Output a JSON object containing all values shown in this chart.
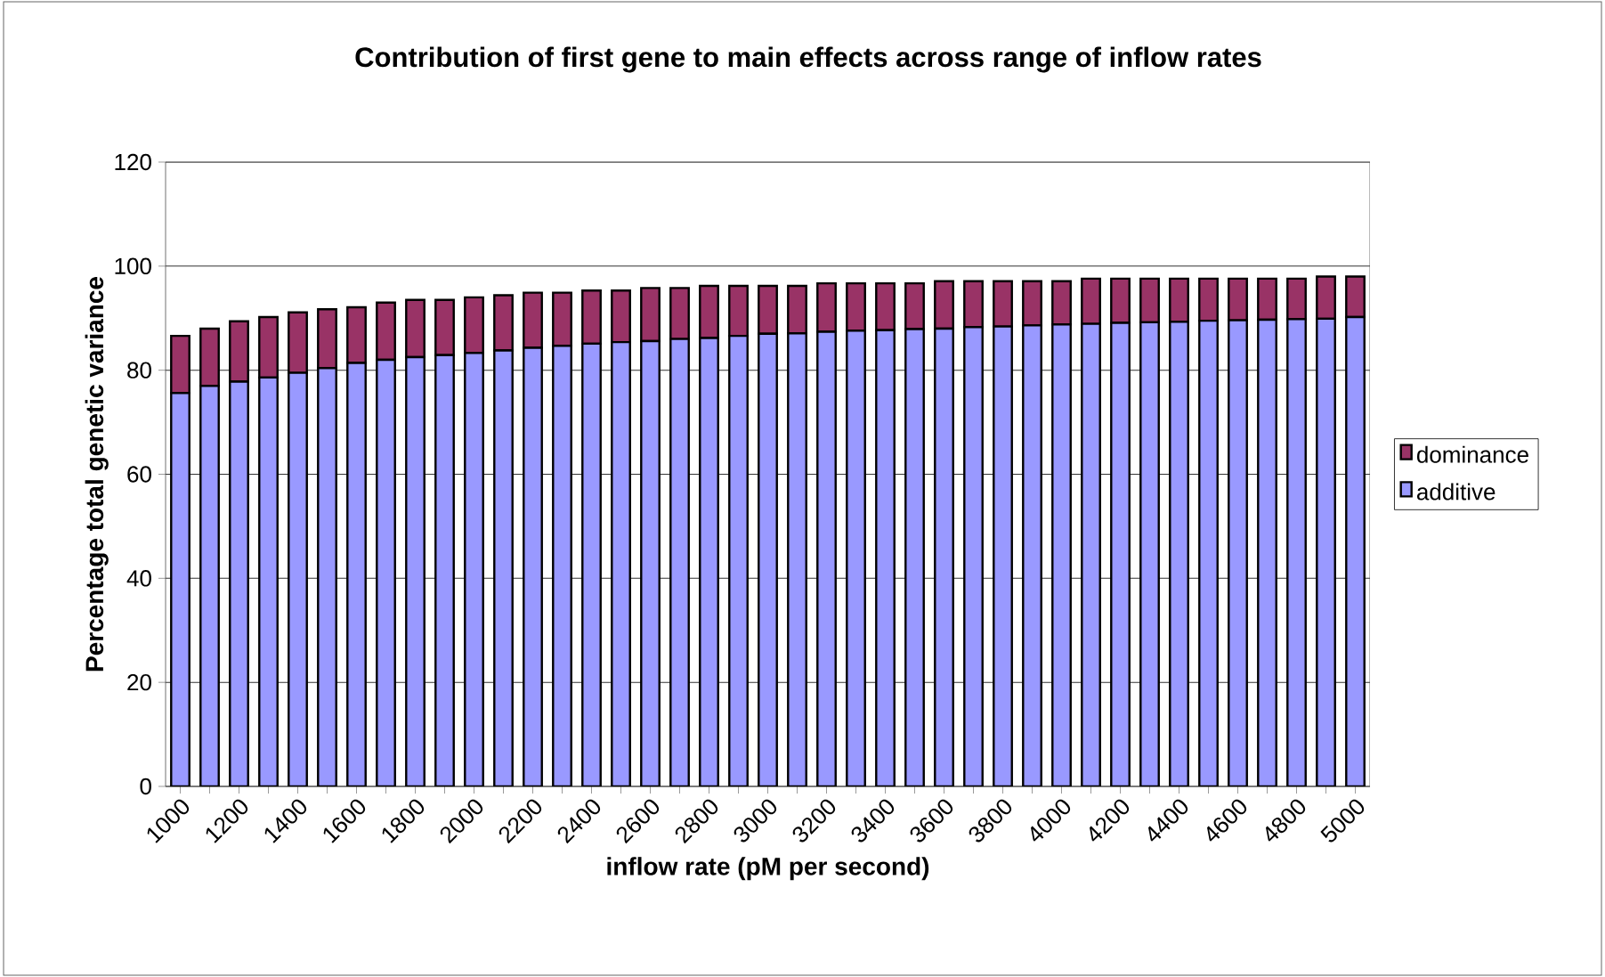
{
  "chart_data": {
    "type": "bar",
    "stacked": true,
    "title": "Contribution of first gene to main effects across range of inflow rates",
    "xlabel": "inflow rate (pM per second)",
    "ylabel": "Percentage total genetic variance",
    "categories": [
      "1000",
      null,
      "1200",
      null,
      "1400",
      null,
      "1600",
      null,
      "1800",
      null,
      "2000",
      null,
      "2200",
      null,
      "2400",
      null,
      "2600",
      null,
      "2800",
      null,
      "3000",
      null,
      "3200",
      null,
      "3400",
      null,
      "3600",
      null,
      "3800",
      null,
      "4000",
      null,
      "4200",
      null,
      "4400",
      null,
      "4600",
      null,
      "4800",
      null,
      "5000"
    ],
    "series": [
      {
        "name": "additive",
        "color": "#9999ff",
        "values": [
          75.6,
          77.0,
          77.8,
          78.6,
          79.5,
          80.4,
          81.4,
          82.0,
          82.5,
          82.9,
          83.3,
          83.8,
          84.3,
          84.7,
          85.1,
          85.4,
          85.6,
          86.0,
          86.2,
          86.6,
          87.0,
          87.1,
          87.4,
          87.6,
          87.7,
          87.9,
          88.0,
          88.3,
          88.4,
          88.6,
          88.8,
          88.9,
          89.1,
          89.2,
          89.3,
          89.5,
          89.6,
          89.7,
          89.8,
          89.9,
          90.2
        ]
      },
      {
        "name": "dominance",
        "color": "#993366",
        "values": [
          11.0,
          11.0,
          11.6,
          11.6,
          11.6,
          11.3,
          10.7,
          11.0,
          11.0,
          10.6,
          10.7,
          10.6,
          10.6,
          10.2,
          10.2,
          9.9,
          10.2,
          9.8,
          10.0,
          9.6,
          9.2,
          9.1,
          9.3,
          9.1,
          9.0,
          8.8,
          9.1,
          8.8,
          8.7,
          8.5,
          8.3,
          8.7,
          8.5,
          8.4,
          8.3,
          8.1,
          8.0,
          7.9,
          7.8,
          8.1,
          7.8
        ]
      }
    ],
    "ylim": [
      0,
      120
    ],
    "yticks": [
      0,
      20,
      40,
      60,
      80,
      100,
      120
    ],
    "grid": "y",
    "legend": "right"
  }
}
